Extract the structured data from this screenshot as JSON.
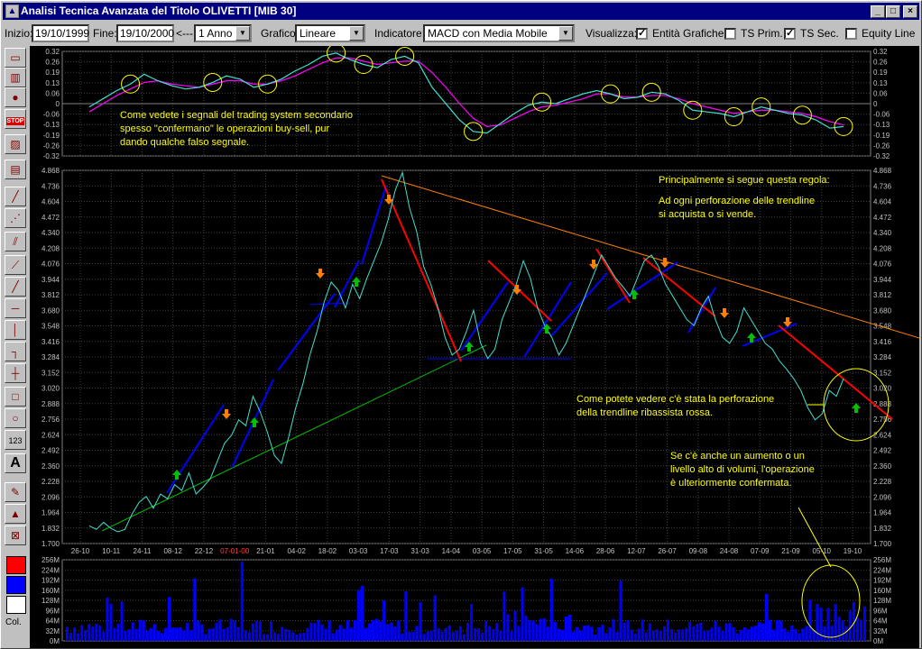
{
  "window": {
    "title": "Analisi Tecnica Avanzata del Titolo  OLIVETTI  [MIB 30]",
    "min_icon": "minimize-icon",
    "max_icon": "maximize-icon",
    "close_icon": "close-icon"
  },
  "toolbar": {
    "start_label": "Inizio:",
    "start_value": "19/10/1999",
    "end_label": "Fine:",
    "end_value": "19/10/2000",
    "period_arrow": "<---",
    "period_value": "1 Anno",
    "chart_label": "Grafico:",
    "chart_value": "Lineare",
    "indicator_label": "Indicatore:",
    "indicator_value": "MACD con Media Mobile",
    "view_label": "Visualizza:",
    "checks": [
      {
        "label": "Entità Grafiche",
        "checked": true
      },
      {
        "label": "TS Prim.",
        "checked": false
      },
      {
        "label": "TS Sec.",
        "checked": true
      },
      {
        "label": "Equity Line",
        "checked": false
      }
    ]
  },
  "left_tools": [
    "folder-icon",
    "bar-chart-icon",
    "globe-icon",
    "stop-icon",
    "indicator-chart-icon",
    "printer-icon",
    "trendline-icon",
    "trendline-dotted-icon",
    "channel-icon",
    "fan-icon",
    "line-icon",
    "horizontal-line-icon",
    "vertical-line-icon",
    "step-icon",
    "cross-icon",
    "rectangle-icon",
    "circle-icon",
    "numbers-icon",
    "text-icon",
    "pencil-icon",
    "paint-icon",
    "erase-icon"
  ],
  "left_tool_text": {
    "numbers": "123",
    "text": "A",
    "stop": "STOP"
  },
  "colors_label": "Col.",
  "colors": {
    "red": "#ff0000",
    "blue": "#0000ff",
    "white": "#ffffff",
    "price": "#40e0d0",
    "macd": "#40e0d0",
    "signal": "#ff00ff",
    "trend_down": "#ff0000",
    "trend_up": "#0000ff",
    "support": "#00c000",
    "resist": "#ff8000",
    "annotation": "#ffff00",
    "buy": "#00c000",
    "sell": "#ff8000"
  },
  "annotations": {
    "macd_note": [
      "Come vedete i segnali del trading system secondario",
      "spesso \"confermano\" le operazioni buy-sell, pur",
      "dando qualche falso segnale."
    ],
    "rule_title": "Principalmente si segue questa regola:",
    "rule_text": [
      "Ad ogni perforazione delle trendline",
      "si acquista o si vende."
    ],
    "breakout": [
      "Come potete vedere c'è stata la perforazione",
      "della trendline ribassista rossa."
    ],
    "volume_note": [
      "Se c'è anche un aumento o un",
      "livello alto di volumi, l'operazione",
      "è ulteriormente confermata."
    ]
  },
  "chart_data": {
    "macd": {
      "type": "line",
      "ylim": [
        -0.32,
        0.32
      ],
      "ticks": [
        "0.32",
        "0.26",
        "0.19",
        "0.13",
        "0.06",
        "0",
        "-0.06",
        "-0.13",
        "-0.19",
        "-0.26",
        "-0.32"
      ],
      "series": [
        {
          "values": [
            -0.02,
            0.03,
            0.08,
            0.12,
            0.18,
            0.14,
            0.11,
            0.09,
            0.1,
            0.13,
            0.17,
            0.15,
            0.1,
            0.12,
            0.15,
            0.2,
            0.24,
            0.29,
            0.31,
            0.27,
            0.24,
            0.22,
            0.27,
            0.29,
            0.25,
            0.1,
            0.0,
            -0.1,
            -0.17,
            -0.18,
            -0.12,
            -0.06,
            -0.01,
            0.01,
            0.0,
            0.03,
            0.06,
            0.08,
            0.06,
            0.03,
            0.04,
            0.07,
            0.06,
            0.02,
            -0.04,
            -0.05,
            -0.06,
            -0.08,
            -0.05,
            -0.02,
            -0.04,
            -0.06,
            -0.07,
            -0.1,
            -0.15,
            -0.14
          ]
        },
        {
          "values": [
            -0.05,
            0.0,
            0.05,
            0.09,
            0.13,
            0.14,
            0.12,
            0.11,
            0.1,
            0.12,
            0.14,
            0.14,
            0.12,
            0.12,
            0.14,
            0.17,
            0.21,
            0.25,
            0.28,
            0.28,
            0.26,
            0.24,
            0.25,
            0.26,
            0.26,
            0.19,
            0.1,
            0.0,
            -0.09,
            -0.14,
            -0.13,
            -0.09,
            -0.05,
            -0.02,
            -0.01,
            0.01,
            0.03,
            0.06,
            0.06,
            0.04,
            0.04,
            0.05,
            0.05,
            0.03,
            0.0,
            -0.02,
            -0.04,
            -0.06,
            -0.05,
            -0.04,
            -0.04,
            -0.05,
            -0.06,
            -0.08,
            -0.11,
            -0.13
          ]
        }
      ]
    },
    "price": {
      "type": "line",
      "ylim": [
        1.7,
        4.868
      ],
      "ticks": [
        "4.868",
        "4.736",
        "4.604",
        "4.472",
        "4.340",
        "4.208",
        "4.076",
        "3.944",
        "3.812",
        "3.680",
        "3.548",
        "3.416",
        "3.284",
        "3.152",
        "3.020",
        "2.888",
        "2.756",
        "2.624",
        "2.492",
        "2.360",
        "2.228",
        "2.096",
        "1.964",
        "1.832",
        "1.700"
      ],
      "x_labels": [
        "26-10",
        "10-11",
        "24-11",
        "08-12",
        "22-12",
        "07-01-00",
        "21-01",
        "04-02",
        "18-02",
        "03-03",
        "17-03",
        "31-03",
        "14-04",
        "03-05",
        "17-05",
        "31-05",
        "14-06",
        "28-06",
        "12-07",
        "26-07",
        "09-08",
        "24-08",
        "07-09",
        "21-09",
        "05-10",
        "19-10"
      ],
      "values": [
        1.85,
        1.82,
        1.88,
        1.83,
        1.8,
        1.82,
        1.95,
        2.05,
        2.1,
        2.0,
        2.12,
        2.08,
        2.2,
        2.15,
        2.3,
        2.12,
        2.18,
        2.25,
        2.4,
        2.55,
        2.62,
        2.75,
        2.7,
        2.95,
        2.82,
        2.65,
        2.45,
        2.38,
        2.6,
        2.85,
        3.05,
        3.3,
        3.5,
        3.75,
        3.92,
        3.85,
        3.7,
        3.9,
        3.78,
        3.95,
        4.1,
        4.25,
        4.45,
        4.7,
        4.85,
        4.55,
        4.35,
        4.05,
        3.9,
        3.7,
        3.45,
        3.3,
        3.35,
        3.5,
        3.68,
        3.4,
        3.27,
        3.35,
        3.6,
        3.75,
        3.9,
        4.1,
        3.95,
        3.7,
        3.55,
        3.45,
        3.3,
        3.4,
        3.55,
        3.7,
        3.85,
        4.0,
        4.15,
        4.05,
        3.95,
        3.88,
        3.8,
        3.95,
        4.1,
        4.15,
        4.05,
        3.9,
        3.8,
        3.7,
        3.6,
        3.55,
        3.7,
        3.8,
        3.6,
        3.45,
        3.4,
        3.5,
        3.7,
        3.6,
        3.5,
        3.4,
        3.35,
        3.25,
        3.18,
        3.1,
        3.0,
        2.85,
        2.75,
        2.8,
        3.0,
        2.95,
        3.1
      ]
    },
    "volume": {
      "type": "bar",
      "ylim": [
        0,
        256
      ],
      "ticks": [
        "256M",
        "224M",
        "192M",
        "160M",
        "128M",
        "96M",
        "64M",
        "32M",
        "0M"
      ]
    }
  }
}
